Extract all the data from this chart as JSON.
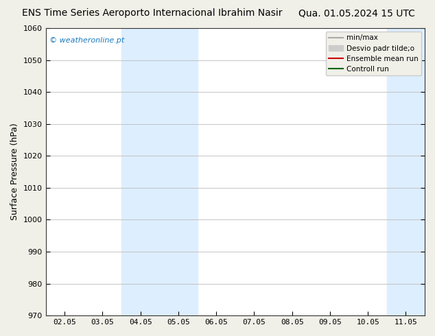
{
  "title_left": "ENS Time Series Aeroporto Internacional Ibrahim Nasir",
  "title_right": "Qua. 01.05.2024 15 UTC",
  "ylabel": "Surface Pressure (hPa)",
  "ylim": [
    970,
    1060
  ],
  "yticks": [
    970,
    980,
    990,
    1000,
    1010,
    1020,
    1030,
    1040,
    1050,
    1060
  ],
  "x_tick_labels": [
    "02.05",
    "03.05",
    "04.05",
    "05.05",
    "06.05",
    "07.05",
    "08.05",
    "09.05",
    "10.05",
    "11.05"
  ],
  "x_tick_positions": [
    1,
    2,
    3,
    4,
    5,
    6,
    7,
    8,
    9,
    10
  ],
  "xlim": [
    0.5,
    10.5
  ],
  "shaded_bands": [
    {
      "xmin": 2.5,
      "xmax": 3.5,
      "color": "#ddeeff"
    },
    {
      "xmin": 3.5,
      "xmax": 4.5,
      "color": "#ddeeff"
    },
    {
      "xmin": 9.5,
      "xmax": 10.0,
      "color": "#ddeeff"
    },
    {
      "xmin": 10.0,
      "xmax": 10.5,
      "color": "#ddeeff"
    }
  ],
  "watermark": "© weatheronline.pt",
  "watermark_color": "#1a7abf",
  "legend_items": [
    {
      "label": "min/max",
      "color": "#aaaaaa",
      "type": "line",
      "lw": 1.5
    },
    {
      "label": "Desvio padr tilde;o",
      "color": "#cccccc",
      "type": "patch"
    },
    {
      "label": "Ensemble mean run",
      "color": "#cc0000",
      "type": "line",
      "lw": 1.5
    },
    {
      "label": "Controll run",
      "color": "#006600",
      "type": "line",
      "lw": 1.5
    }
  ],
  "bg_color": "#f0f0e8",
  "plot_bg_color": "#ffffff",
  "grid_color": "#bbbbbb",
  "title_fontsize": 10,
  "ylabel_fontsize": 9,
  "tick_fontsize": 8,
  "legend_fontsize": 7.5,
  "watermark_fontsize": 8
}
